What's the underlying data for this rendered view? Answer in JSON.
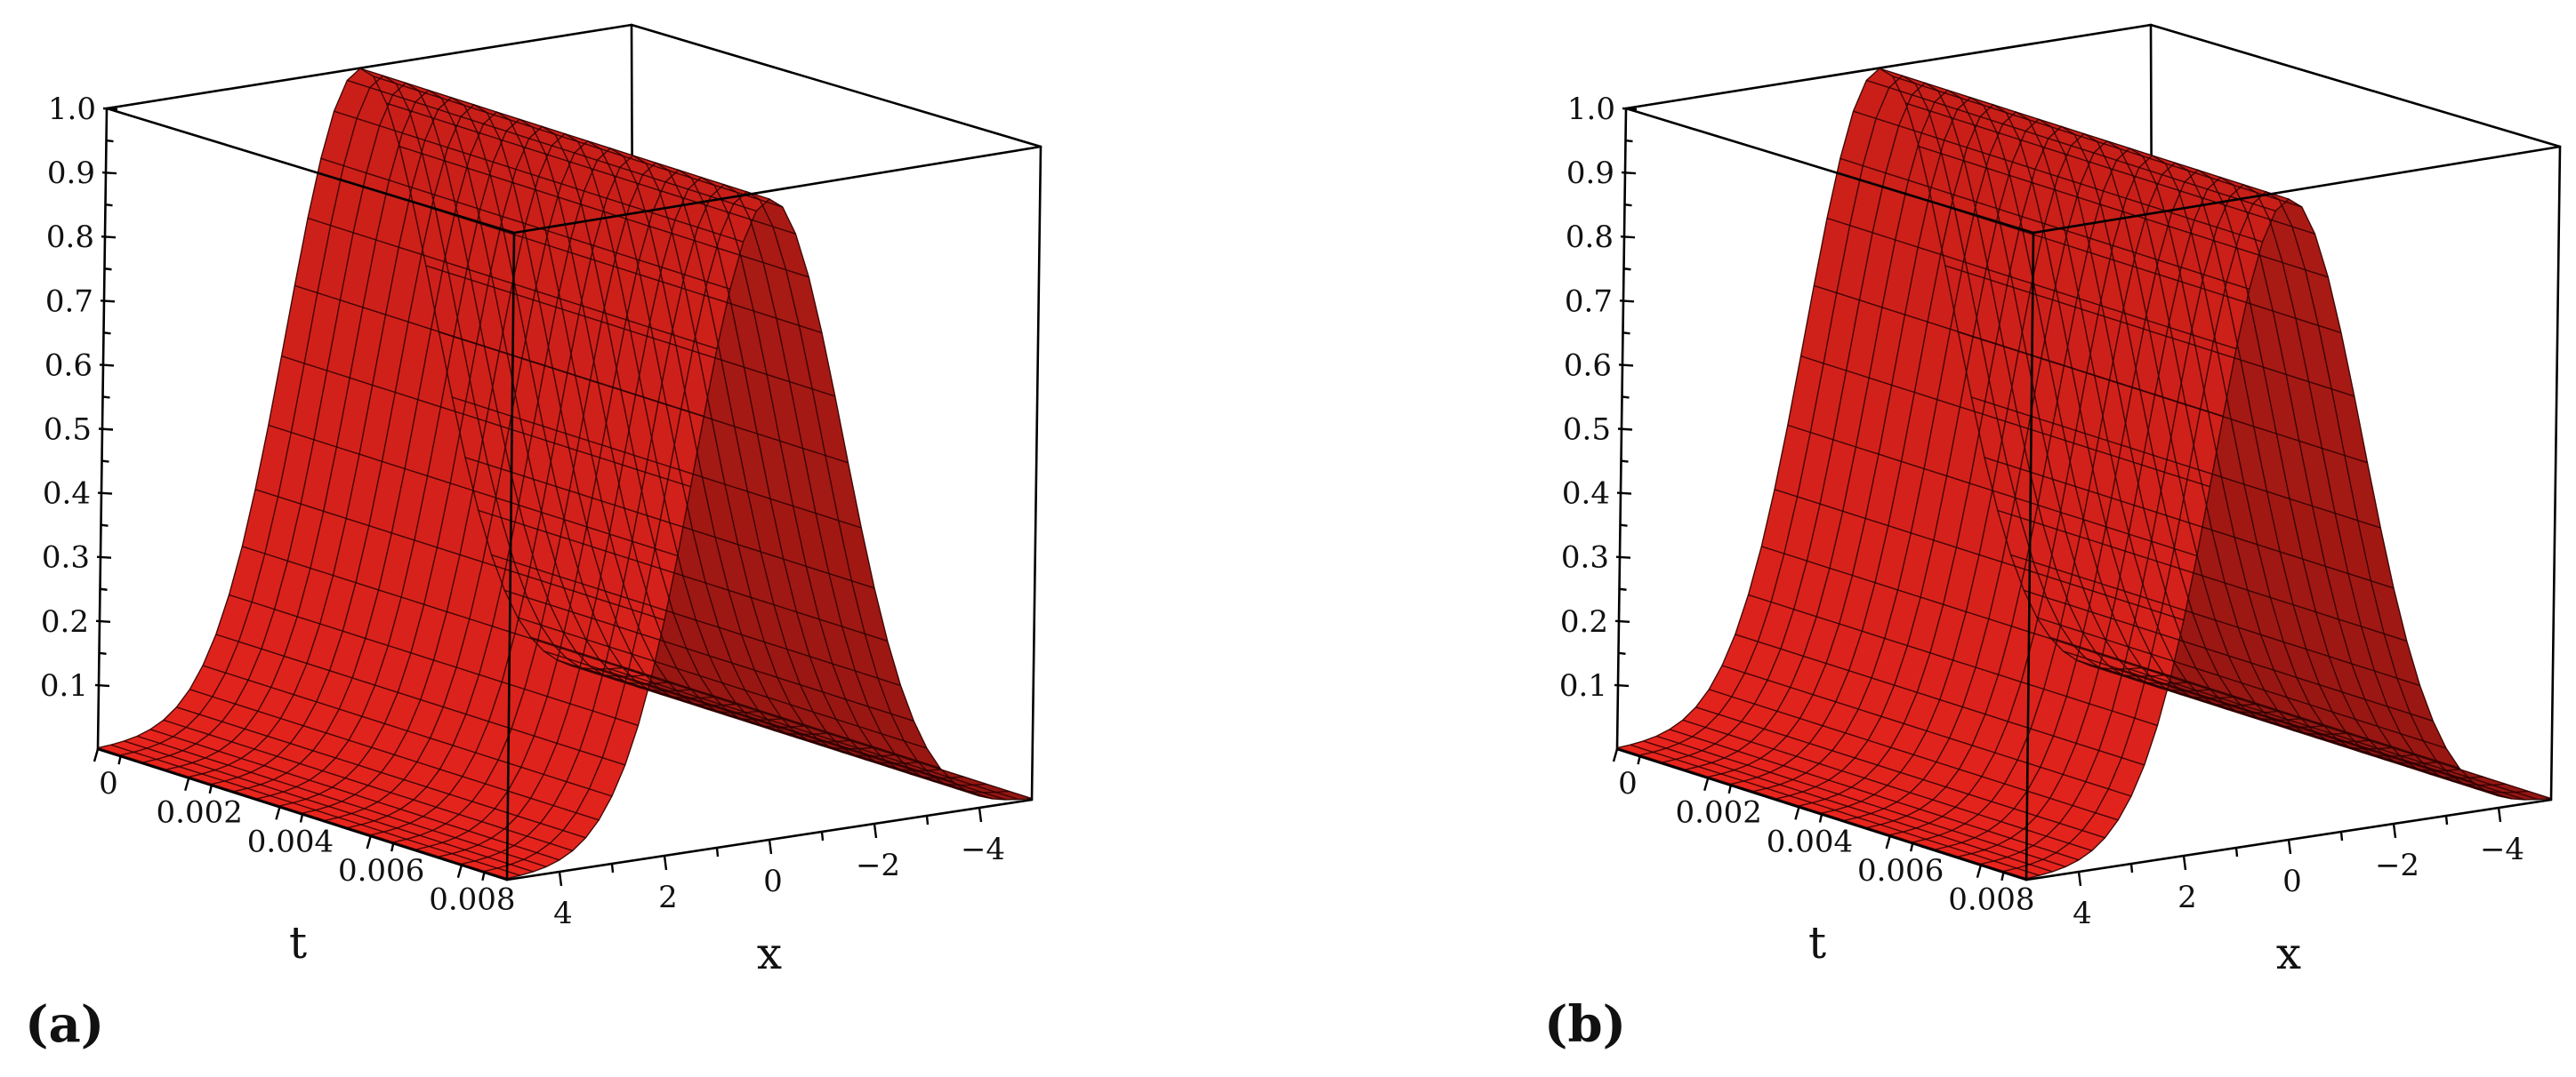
{
  "chart_data": [
    {
      "panel_label": "(a)",
      "type": "surface3d",
      "xlabel": "x",
      "tlabel": "t",
      "zlabel": "",
      "x_range": [
        -5,
        5
      ],
      "t_range": [
        0,
        0.009
      ],
      "z_range": [
        0,
        1.0
      ],
      "z_ticks": [
        "0.1",
        "0.2",
        "0.3",
        "0.4",
        "0.5",
        "0.6",
        "0.7",
        "0.8",
        "0.9",
        "1.0"
      ],
      "t_ticks": [
        "0",
        "0.002",
        "0.004",
        "0.006",
        "0.008"
      ],
      "x_ticks": [
        "4",
        "2",
        "0",
        "−2",
        "−4"
      ],
      "surface": {
        "peak": 1.0,
        "profile": "exp(-x^2/4) (approx., constant in t)",
        "x_samples": [
          -5,
          -4,
          -3,
          -2,
          -1,
          0,
          1,
          2,
          3,
          4,
          5
        ],
        "z_samples": [
          0.002,
          0.018,
          0.105,
          0.368,
          0.779,
          1.0,
          0.779,
          0.368,
          0.105,
          0.018,
          0.002
        ]
      },
      "color": "#e8231e"
    },
    {
      "panel_label": "(b)",
      "type": "surface3d",
      "xlabel": "x",
      "tlabel": "t",
      "zlabel": "",
      "x_range": [
        -5,
        5
      ],
      "t_range": [
        0,
        0.009
      ],
      "z_range": [
        0,
        1.0
      ],
      "z_ticks": [
        "0.1",
        "0.2",
        "0.3",
        "0.4",
        "0.5",
        "0.6",
        "0.7",
        "0.8",
        "0.9",
        "1.0"
      ],
      "t_ticks": [
        "0",
        "0.002",
        "0.004",
        "0.006",
        "0.008"
      ],
      "x_ticks": [
        "4",
        "2",
        "0",
        "−2",
        "−4"
      ],
      "surface": {
        "peak": 1.0,
        "profile": "exp(-x^2/4) (approx., constant in t)",
        "x_samples": [
          -5,
          -4,
          -3,
          -2,
          -1,
          0,
          1,
          2,
          3,
          4,
          5
        ],
        "z_samples": [
          0.002,
          0.018,
          0.105,
          0.368,
          0.779,
          1.0,
          0.779,
          0.368,
          0.105,
          0.018,
          0.002
        ]
      },
      "color": "#e8231e"
    }
  ]
}
